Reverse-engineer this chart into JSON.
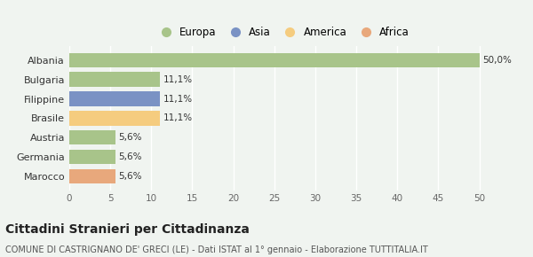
{
  "categories": [
    "Marocco",
    "Germania",
    "Austria",
    "Brasile",
    "Filippine",
    "Bulgaria",
    "Albania"
  ],
  "values": [
    5.6,
    5.6,
    5.6,
    11.1,
    11.1,
    11.1,
    50.0
  ],
  "labels": [
    "5,6%",
    "5,6%",
    "5,6%",
    "11,1%",
    "11,1%",
    "11,1%",
    "50,0%"
  ],
  "colors": [
    "#E8A87C",
    "#A8C48A",
    "#A8C48A",
    "#F5CC7F",
    "#7A92C4",
    "#A8C48A",
    "#A8C48A"
  ],
  "legend_items": [
    {
      "label": "Europa",
      "color": "#A8C48A"
    },
    {
      "label": "Asia",
      "color": "#7A92C4"
    },
    {
      "label": "America",
      "color": "#F5CC7F"
    },
    {
      "label": "Africa",
      "color": "#E8A87C"
    }
  ],
  "xlim": [
    0,
    52
  ],
  "xticks": [
    0,
    5,
    10,
    15,
    20,
    25,
    30,
    35,
    40,
    45,
    50
  ],
  "title": "Cittadini Stranieri per Cittadinanza",
  "subtitle": "COMUNE DI CASTRIGNANO DE' GRECI (LE) - Dati ISTAT al 1° gennaio - Elaborazione TUTTITALIA.IT",
  "bg_color": "#f0f4f0",
  "plot_bg_color": "#f0f4f0",
  "bar_height": 0.75,
  "label_fontsize": 7.5,
  "tick_fontsize": 7.5,
  "category_fontsize": 8,
  "title_fontsize": 10,
  "subtitle_fontsize": 7
}
